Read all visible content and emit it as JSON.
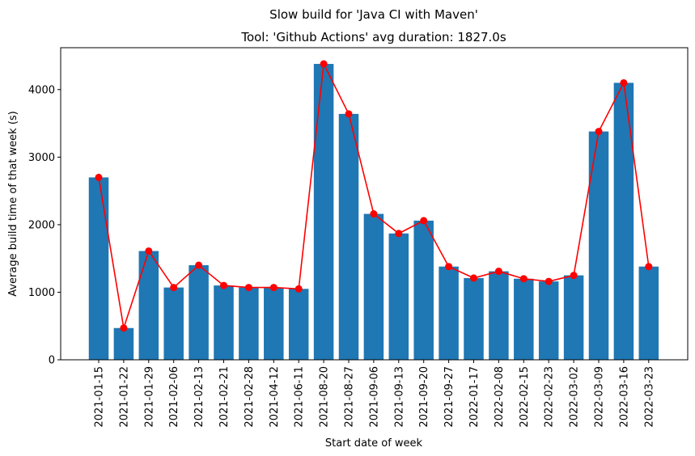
{
  "chart_data": {
    "type": "bar",
    "suptitle": "Slow build for 'Java CI with Maven'",
    "title": "Tool: 'Github Actions' avg duration: 1827.0s",
    "xlabel": "Start date of week",
    "ylabel": "Average build time of that week (s)",
    "ylim": [
      0,
      4620
    ],
    "yticks": [
      0,
      1000,
      2000,
      3000,
      4000
    ],
    "grid": false,
    "categories": [
      "2021-01-15",
      "2021-01-22",
      "2021-01-29",
      "2021-02-06",
      "2021-02-13",
      "2021-02-21",
      "2021-02-28",
      "2021-04-12",
      "2021-06-11",
      "2021-08-20",
      "2021-08-27",
      "2021-09-06",
      "2021-09-13",
      "2021-09-20",
      "2021-09-27",
      "2022-01-17",
      "2022-02-08",
      "2022-02-15",
      "2022-02-23",
      "2022-03-02",
      "2022-03-09",
      "2022-03-16",
      "2022-03-23"
    ],
    "series": [
      {
        "type": "bar",
        "color": "#1f77b4",
        "values": [
          2700,
          470,
          1610,
          1070,
          1400,
          1100,
          1070,
          1070,
          1050,
          4380,
          3640,
          2160,
          1870,
          2060,
          1380,
          1210,
          1310,
          1200,
          1160,
          1250,
          3380,
          4100,
          1380
        ]
      },
      {
        "type": "line",
        "color": "#ff0000",
        "marker": "circle",
        "values": [
          2700,
          470,
          1610,
          1070,
          1400,
          1100,
          1070,
          1070,
          1050,
          4380,
          3640,
          2160,
          1870,
          2060,
          1380,
          1210,
          1310,
          1200,
          1160,
          1250,
          3380,
          4100,
          1380
        ]
      }
    ]
  }
}
